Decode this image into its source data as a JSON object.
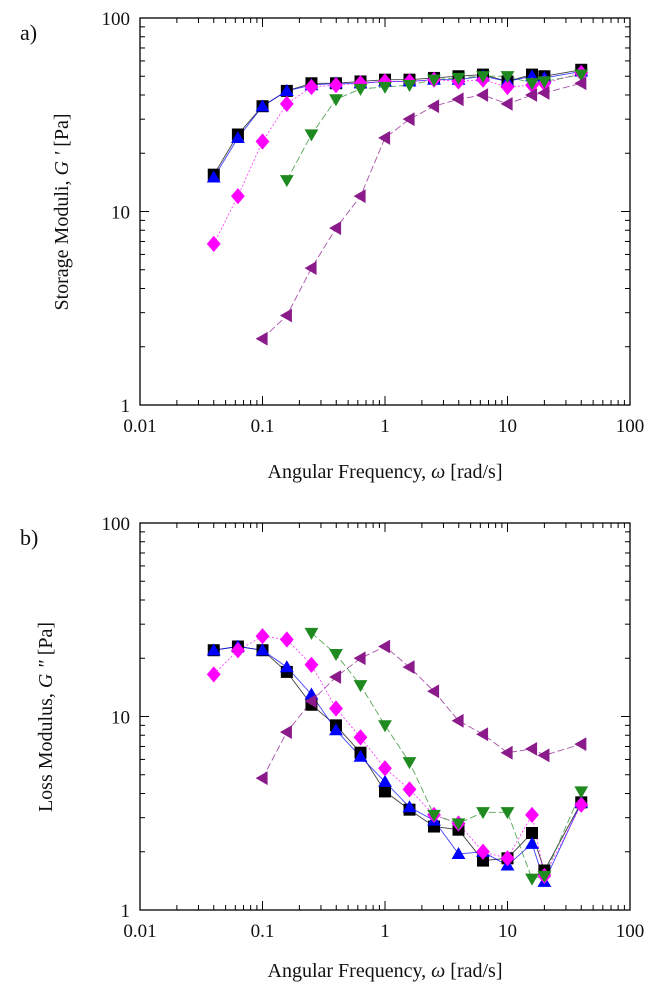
{
  "chart_data": [
    {
      "type": "scatter",
      "panel_label": "a)",
      "title": "",
      "xlabel": {
        "prefix": "Angular Frequency, ",
        "symbol": "ω",
        "suffix": " [rad/s]"
      },
      "ylabel": {
        "prefix": "Storage Moduli, ",
        "symbol": "G '",
        "suffix": " [Pa]"
      },
      "xscale": "log",
      "yscale": "log",
      "xlim": [
        0.01,
        100
      ],
      "ylim": [
        1,
        100
      ],
      "xticks": [
        0.01,
        0.1,
        1,
        10,
        100
      ],
      "xtick_labels": [
        "0.01",
        "0.1",
        "1",
        "10",
        "100"
      ],
      "yticks": [
        1,
        10,
        100
      ],
      "ytick_labels": [
        "1",
        "10",
        "100"
      ],
      "grid": false,
      "series": [
        {
          "color": "#000000",
          "marker": "square",
          "x": [
            0.04,
            0.063,
            0.1,
            0.158,
            0.251,
            0.398,
            0.631,
            1,
            1.585,
            2.512,
            3.981,
            6.31,
            10,
            15.85,
            20,
            40
          ],
          "y": [
            15.5,
            25,
            35,
            42,
            46,
            46,
            47,
            48,
            48,
            49,
            50,
            51,
            47,
            51,
            50,
            54
          ]
        },
        {
          "color": "#0000ff",
          "marker": "triangle-up",
          "x": [
            0.04,
            0.063,
            0.1,
            0.158,
            0.251,
            0.398,
            0.631,
            1,
            1.585,
            2.512,
            3.981,
            6.31,
            10,
            15.85,
            20,
            40
          ],
          "y": [
            15,
            24,
            35,
            42,
            45,
            46,
            46,
            47,
            47,
            48,
            48,
            50,
            47,
            50,
            49,
            53
          ]
        },
        {
          "color": "#ff00ff",
          "marker": "diamond",
          "x": [
            0.04,
            0.063,
            0.1,
            0.158,
            0.251,
            0.398,
            0.631,
            1,
            1.585,
            2.512,
            3.981,
            6.31,
            10,
            15.85,
            20,
            40
          ],
          "y": [
            6.8,
            12,
            23,
            36,
            44,
            45,
            46,
            47,
            47,
            48,
            47,
            48,
            44,
            45,
            46,
            52
          ]
        },
        {
          "color": "#1f8a1f",
          "marker": "triangle-down",
          "x": [
            0.158,
            0.251,
            0.398,
            0.631,
            1,
            1.585,
            2.512,
            3.981,
            6.31,
            10,
            15.85,
            20,
            40
          ],
          "y": [
            14.5,
            25,
            38,
            43,
            44,
            45,
            48,
            49,
            50,
            50,
            46,
            47,
            51
          ]
        },
        {
          "color": "#8b1a8b",
          "marker": "triangle-left",
          "x": [
            0.1,
            0.158,
            0.251,
            0.398,
            0.631,
            1,
            1.585,
            2.512,
            3.981,
            6.31,
            10,
            15.85,
            20,
            40
          ],
          "y": [
            2.2,
            2.9,
            5.1,
            8.2,
            12,
            24,
            30,
            35,
            38,
            40,
            36,
            40,
            41,
            46
          ]
        }
      ]
    },
    {
      "type": "scatter",
      "panel_label": "b)",
      "title": "",
      "xlabel": {
        "prefix": "Angular Frequency, ",
        "symbol": "ω",
        "suffix": " [rad/s]"
      },
      "ylabel": {
        "prefix": "Loss Modulus, ",
        "symbol": "G \"",
        "suffix": " [Pa]"
      },
      "xscale": "log",
      "yscale": "log",
      "xlim": [
        0.01,
        100
      ],
      "ylim": [
        1,
        100
      ],
      "xticks": [
        0.01,
        0.1,
        1,
        10,
        100
      ],
      "xtick_labels": [
        "0.01",
        "0.1",
        "1",
        "10",
        "100"
      ],
      "yticks": [
        1,
        10,
        100
      ],
      "ytick_labels": [
        "1",
        "10",
        "100"
      ],
      "grid": false,
      "series": [
        {
          "color": "#000000",
          "marker": "square",
          "x": [
            0.04,
            0.063,
            0.1,
            0.158,
            0.251,
            0.398,
            0.631,
            1,
            1.585,
            2.512,
            3.981,
            6.31,
            10,
            15.85,
            20,
            40
          ],
          "y": [
            22,
            23,
            22,
            17,
            11.5,
            9,
            6.5,
            4.1,
            3.3,
            2.7,
            2.6,
            1.8,
            1.85,
            2.5,
            1.6,
            3.6
          ]
        },
        {
          "color": "#0000ff",
          "marker": "triangle-up",
          "x": [
            0.04,
            0.063,
            0.1,
            0.158,
            0.251,
            0.398,
            0.631,
            1,
            1.585,
            2.512,
            3.981,
            6.31,
            10,
            15.85,
            20,
            40
          ],
          "y": [
            22,
            23,
            22,
            18,
            13,
            8.5,
            6.2,
            4.6,
            3.4,
            2.9,
            1.95,
            2.0,
            1.7,
            2.2,
            1.4,
            3.6
          ]
        },
        {
          "color": "#ff00ff",
          "marker": "diamond",
          "x": [
            0.04,
            0.063,
            0.1,
            0.158,
            0.251,
            0.398,
            0.631,
            1,
            1.585,
            2.512,
            3.981,
            6.31,
            10,
            15.85,
            20,
            40
          ],
          "y": [
            16.5,
            22,
            26,
            25,
            18.5,
            11,
            7.8,
            5.4,
            4.2,
            3.1,
            2.8,
            2.0,
            1.85,
            3.1,
            1.5,
            3.5
          ]
        },
        {
          "color": "#1f8a1f",
          "marker": "triangle-down",
          "x": [
            0.251,
            0.398,
            0.631,
            1,
            1.585,
            2.512,
            3.981,
            6.31,
            10,
            15.85,
            20,
            40
          ],
          "y": [
            27,
            21,
            14.5,
            9,
            5.8,
            3.1,
            2.8,
            3.2,
            3.2,
            1.45,
            1.5,
            4.1
          ]
        },
        {
          "color": "#8b1a8b",
          "marker": "triangle-left",
          "x": [
            0.1,
            0.158,
            0.251,
            0.398,
            0.631,
            1,
            1.585,
            2.512,
            3.981,
            6.31,
            10,
            15.85,
            20,
            40
          ],
          "y": [
            4.8,
            8.3,
            12,
            16,
            20,
            23,
            18,
            13.5,
            9.5,
            8.1,
            6.5,
            6.8,
            6.3,
            7.2
          ]
        }
      ]
    }
  ]
}
